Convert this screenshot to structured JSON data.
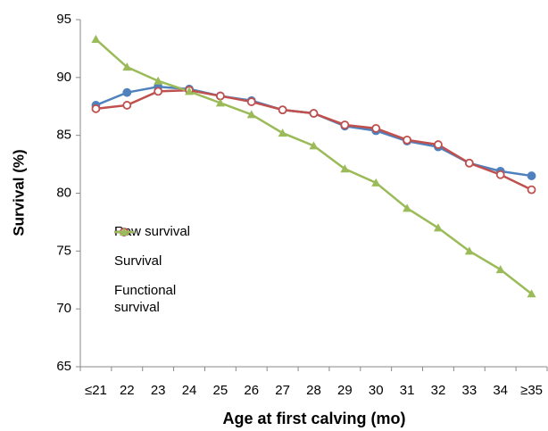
{
  "chart_data": {
    "type": "line",
    "x_label": "Age at first calving (mo)",
    "y_label": "Survival (%)",
    "categories": [
      "≤21",
      "22",
      "23",
      "24",
      "25",
      "26",
      "27",
      "28",
      "29",
      "30",
      "31",
      "32",
      "33",
      "34",
      "≥35"
    ],
    "series": [
      {
        "name": "Raw survival",
        "color": "#4f81bd",
        "marker": "circle",
        "values": [
          87.6,
          88.7,
          89.2,
          89.0,
          88.4,
          88.0,
          87.2,
          86.9,
          85.8,
          85.4,
          84.5,
          84.0,
          82.6,
          81.9,
          81.5
        ]
      },
      {
        "name": "Survival",
        "color": "#c0504d",
        "marker": "open-circle",
        "values": [
          87.3,
          87.6,
          88.8,
          88.9,
          88.4,
          87.9,
          87.2,
          86.9,
          85.9,
          85.6,
          84.6,
          84.2,
          82.6,
          81.6,
          80.3
        ]
      },
      {
        "name": "Functional survival",
        "color": "#9bbb59",
        "marker": "triangle",
        "values": [
          93.3,
          90.9,
          89.7,
          88.8,
          87.8,
          86.8,
          85.2,
          84.1,
          82.1,
          80.9,
          78.7,
          77.0,
          75.0,
          73.4,
          71.3
        ]
      }
    ],
    "ylim": [
      65,
      95
    ],
    "yticks": [
      65,
      70,
      75,
      80,
      85,
      90,
      95
    ],
    "legend": "left"
  }
}
